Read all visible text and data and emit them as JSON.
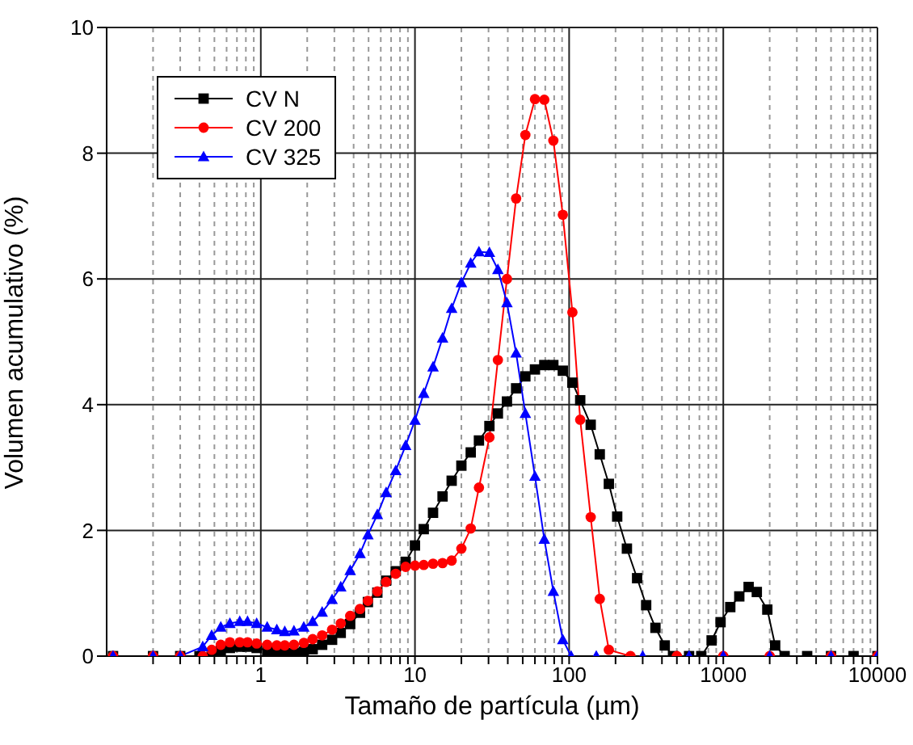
{
  "chart_data": {
    "type": "line",
    "xlabel": "Tamaño de partícula (µm)",
    "ylabel": "Volumen acumulativo (%)",
    "log": "x",
    "xlim": [
      0.1,
      10000
    ],
    "xticks": [
      {
        "value": 0.2,
        "label": null
      },
      {
        "value": 0.3,
        "label": null
      },
      {
        "value": 0.4,
        "label": null
      },
      {
        "value": 0.5,
        "label": null
      },
      {
        "value": 0.6,
        "label": null
      },
      {
        "value": 0.7,
        "label": null
      },
      {
        "value": 0.8,
        "label": null
      },
      {
        "value": 0.9,
        "label": null
      },
      1,
      {
        "value": 2,
        "label": null
      },
      {
        "value": 3,
        "label": null
      },
      {
        "value": 4,
        "label": null
      },
      {
        "value": 5,
        "label": null
      },
      {
        "value": 6,
        "label": null
      },
      {
        "value": 7,
        "label": null
      },
      {
        "value": 8,
        "label": null
      },
      {
        "value": 9,
        "label": null
      },
      10,
      {
        "value": 20,
        "label": null
      },
      {
        "value": 30,
        "label": null
      },
      {
        "value": 40,
        "label": null
      },
      {
        "value": 50,
        "label": null
      },
      {
        "value": 60,
        "label": null
      },
      {
        "value": 70,
        "label": null
      },
      {
        "value": 80,
        "label": null
      },
      {
        "value": 90,
        "label": null
      },
      100,
      {
        "value": 200,
        "label": null
      },
      {
        "value": 300,
        "label": null
      },
      {
        "value": 400,
        "label": null
      },
      {
        "value": 500,
        "label": null
      },
      {
        "value": 600,
        "label": null
      },
      {
        "value": 700,
        "label": null
      },
      {
        "value": 800,
        "label": null
      },
      {
        "value": 900,
        "label": null
      },
      1000,
      {
        "value": 2000,
        "label": null
      },
      {
        "value": 3000,
        "label": null
      },
      {
        "value": 4000,
        "label": null
      },
      {
        "value": 5000,
        "label": null
      },
      {
        "value": 6000,
        "label": null
      },
      {
        "value": 7000,
        "label": null
      },
      {
        "value": 8000,
        "label": null
      },
      {
        "value": 9000,
        "label": null
      },
      10000
    ],
    "ylim": [
      0,
      10
    ],
    "yticks": [
      0,
      2,
      4,
      6,
      8,
      10
    ],
    "grid": true,
    "legend": "top left",
    "line_style": "solid",
    "series": [
      {
        "name": "CV N",
        "color": "#000000",
        "marker": "square",
        "x": [
          0.11,
          0.2,
          0.3,
          0.4,
          0.48,
          0.55,
          0.63,
          0.73,
          0.82,
          0.94,
          1.1,
          1.27,
          1.43,
          1.64,
          1.9,
          2.17,
          2.5,
          2.9,
          3.3,
          3.8,
          4.4,
          4.95,
          5.7,
          6.5,
          7.5,
          8.7,
          10,
          11.4,
          13.1,
          15.1,
          17.3,
          20,
          23,
          26,
          30.4,
          34.5,
          39.5,
          45.3,
          52,
          60,
          69,
          79,
          91,
          105,
          118,
          138,
          158,
          181,
          205,
          237,
          276,
          316,
          363,
          417,
          472,
          600,
          720,
          840,
          960,
          1110,
          1270,
          1460,
          1650,
          1930,
          2170,
          2500,
          3500,
          5000,
          7000,
          10000
        ],
        "values": [
          0,
          0,
          0,
          0,
          0.02,
          0.09,
          0.13,
          0.15,
          0.15,
          0.13,
          0.09,
          0.07,
          0.05,
          0.05,
          0.07,
          0.11,
          0.18,
          0.26,
          0.37,
          0.51,
          0.69,
          0.86,
          1.01,
          1.2,
          1.35,
          1.5,
          1.76,
          2.02,
          2.28,
          2.54,
          2.79,
          3.03,
          3.24,
          3.43,
          3.66,
          3.86,
          4.05,
          4.26,
          4.45,
          4.56,
          4.63,
          4.63,
          4.54,
          4.35,
          4.07,
          3.68,
          3.21,
          2.74,
          2.22,
          1.71,
          1.24,
          0.81,
          0.45,
          0.17,
          0,
          0,
          0,
          0.25,
          0.54,
          0.78,
          0.95,
          1.1,
          1.02,
          0.74,
          0.17,
          0,
          0,
          0,
          0,
          0
        ]
      },
      {
        "name": "CV 200",
        "color": "#ff0000",
        "marker": "circle",
        "x": [
          0.11,
          0.2,
          0.3,
          0.42,
          0.48,
          0.55,
          0.63,
          0.73,
          0.82,
          0.94,
          1.1,
          1.27,
          1.43,
          1.64,
          1.9,
          2.17,
          2.5,
          2.9,
          3.3,
          3.8,
          4.4,
          4.95,
          5.7,
          6.5,
          7.5,
          8.7,
          10,
          11.4,
          13.1,
          15.1,
          17.3,
          20,
          23,
          26,
          30.4,
          34.5,
          39.5,
          45.3,
          52,
          60,
          69,
          79,
          91,
          105,
          118,
          138,
          158,
          181,
          250,
          500,
          1000,
          2000,
          5000,
          10000
        ],
        "values": [
          0,
          0,
          0,
          0,
          0.1,
          0.18,
          0.22,
          0.22,
          0.22,
          0.2,
          0.18,
          0.17,
          0.17,
          0.18,
          0.21,
          0.27,
          0.33,
          0.42,
          0.52,
          0.64,
          0.75,
          0.88,
          1.03,
          1.18,
          1.31,
          1.42,
          1.44,
          1.45,
          1.47,
          1.48,
          1.52,
          1.71,
          2.03,
          2.68,
          3.48,
          4.71,
          6.0,
          7.28,
          8.29,
          8.86,
          8.85,
          8.2,
          7.02,
          5.47,
          3.76,
          2.21,
          0.91,
          0.1,
          0,
          0,
          0,
          0,
          0,
          0
        ]
      },
      {
        "name": "CV 325",
        "color": "#0000ff",
        "marker": "triangle",
        "x": [
          0.11,
          0.2,
          0.3,
          0.42,
          0.48,
          0.55,
          0.63,
          0.73,
          0.82,
          0.94,
          1.1,
          1.27,
          1.43,
          1.64,
          1.9,
          2.17,
          2.5,
          2.9,
          3.3,
          3.8,
          4.4,
          4.95,
          5.7,
          6.5,
          7.5,
          8.7,
          10,
          11.4,
          13.1,
          15.1,
          17.3,
          20,
          23,
          26,
          30.4,
          34.5,
          39.5,
          45.3,
          52,
          60,
          69,
          79,
          91,
          103,
          150,
          300,
          600,
          1000,
          2000,
          5000,
          10000
        ],
        "values": [
          0,
          0,
          0,
          0.15,
          0.33,
          0.46,
          0.52,
          0.55,
          0.55,
          0.52,
          0.46,
          0.42,
          0.39,
          0.4,
          0.46,
          0.55,
          0.7,
          0.9,
          1.1,
          1.36,
          1.63,
          1.93,
          2.25,
          2.6,
          2.95,
          3.35,
          3.75,
          4.18,
          4.6,
          5.06,
          5.53,
          5.94,
          6.25,
          6.43,
          6.42,
          6.15,
          5.62,
          4.82,
          3.86,
          2.86,
          1.86,
          1.03,
          0.26,
          0,
          0,
          0,
          0,
          0,
          0,
          0,
          0
        ]
      }
    ]
  }
}
